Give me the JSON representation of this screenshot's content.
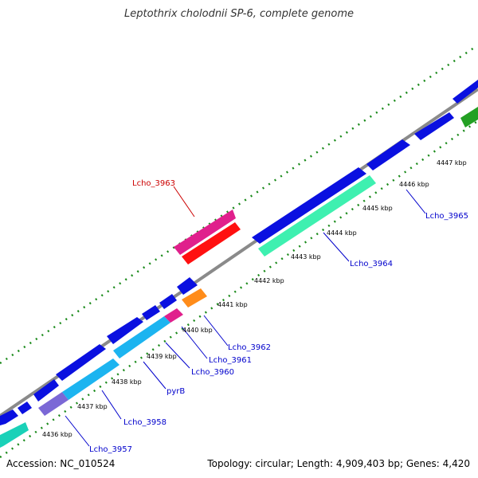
{
  "title": "Leptothrix cholodnii SP-6, complete genome",
  "footer": {
    "accession": "Accession: NC_010524",
    "summary": "Topology: circular; Length: 4,909,403 bp; Genes: 4,420"
  },
  "colors": {
    "backbone": "#888888",
    "tick": "#1a8a1a",
    "forward_gene": "#0a10e0",
    "label_blue": "#0000cc",
    "label_red": "#cc0000"
  },
  "kbp_ticks": [
    "4436 kbp",
    "4437 kbp",
    "4438 kbp",
    "4439 kbp",
    "4440 kbp",
    "4441 kbp",
    "4442 kbp",
    "4443 kbp",
    "4444 kbp",
    "4445 kbp",
    "4446 kbp",
    "4447 kbp"
  ],
  "gene_labels": [
    {
      "name": "Lcho_3957",
      "color": "blue"
    },
    {
      "name": "Lcho_3958",
      "color": "blue"
    },
    {
      "name": "pyrB",
      "color": "blue"
    },
    {
      "name": "Lcho_3960",
      "color": "blue"
    },
    {
      "name": "Lcho_3961",
      "color": "blue"
    },
    {
      "name": "Lcho_3962",
      "color": "blue"
    },
    {
      "name": "Lcho_3963",
      "color": "red"
    },
    {
      "name": "Lcho_3964",
      "color": "blue"
    },
    {
      "name": "Lcho_3965",
      "color": "blue"
    }
  ]
}
